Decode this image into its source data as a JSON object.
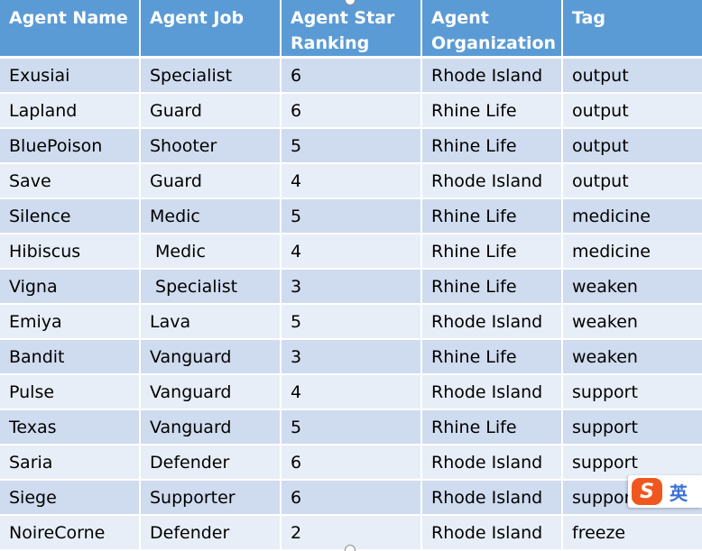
{
  "table": {
    "headers": [
      "Agent Name",
      "Agent Job",
      "Agent Star Ranking",
      "Agent Organization",
      "Tag"
    ],
    "rows": [
      [
        "Exusiai",
        "Specialist",
        "6",
        "Rhode Island",
        "output"
      ],
      [
        "Lapland",
        "Guard",
        "6",
        "Rhine Life",
        "output"
      ],
      [
        "BluePoison",
        "Shooter",
        "5",
        "Rhine Life",
        "output"
      ],
      [
        "Save",
        "Guard",
        "4",
        "Rhode Island",
        "output"
      ],
      [
        "Silence",
        "Medic",
        "5",
        "Rhine Life",
        "medicine"
      ],
      [
        "Hibiscus",
        " Medic",
        "4",
        "Rhine Life",
        "medicine"
      ],
      [
        "Vigna",
        " Specialist",
        "3",
        "Rhine Life",
        "weaken"
      ],
      [
        "Emiya",
        "Lava",
        "5",
        "Rhode Island",
        "weaken"
      ],
      [
        "Bandit",
        "Vanguard",
        "3",
        "Rhine Life",
        "weaken"
      ],
      [
        "Pulse",
        "Vanguard",
        "4",
        "Rhode Island",
        "support"
      ],
      [
        "Texas",
        "Vanguard",
        "5",
        "Rhine Life",
        "support"
      ],
      [
        "Saria",
        "Defender",
        "6",
        "Rhode Island",
        "support"
      ],
      [
        "Siege",
        "Supporter",
        "6",
        "Rhode Island",
        "support"
      ],
      [
        "NoireCorne",
        "Defender",
        "2",
        "Rhode Island",
        "freeze"
      ]
    ]
  },
  "ime": {
    "logo": "S",
    "language": "英"
  },
  "colors": {
    "header_bg": "#5b9bd5",
    "row_dark": "#cfdbee",
    "row_light": "#e8eef7",
    "ime_logo": "#f0571f",
    "ime_text": "#3a6fd8"
  }
}
